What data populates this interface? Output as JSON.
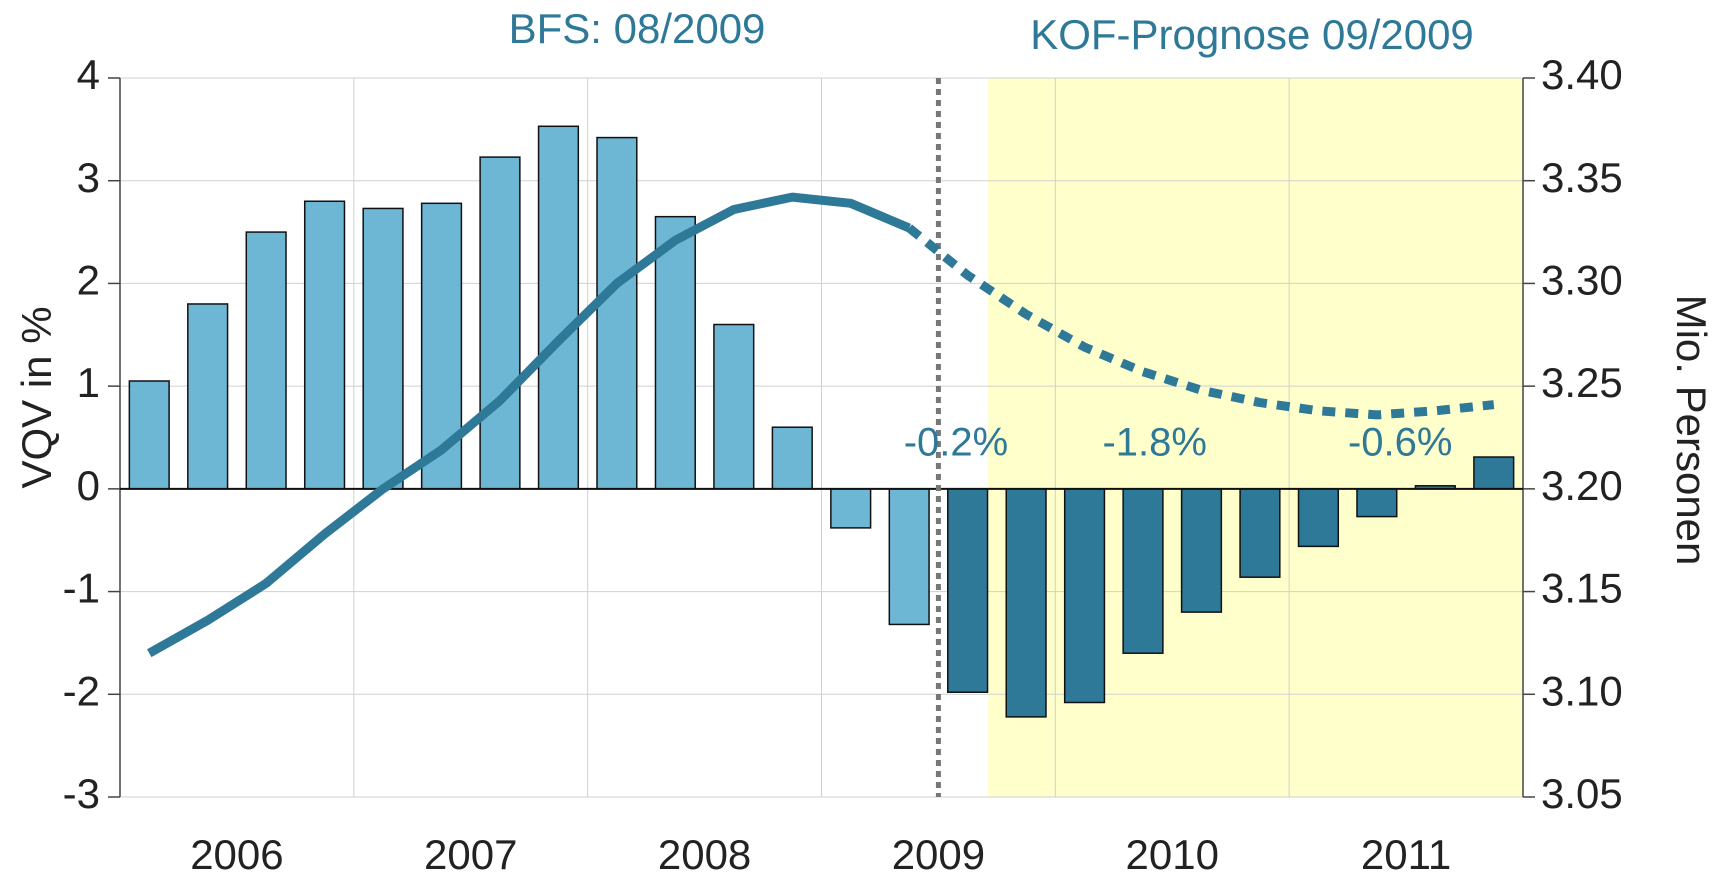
{
  "chart_data": {
    "type": "bar",
    "header_left": "BFS: 08/2009",
    "header_right": "KOF-Prognose 09/2009",
    "y_label": "VQV in %",
    "y2_label": "Mio. Personen",
    "x_labels": [
      "2006",
      "2007",
      "2008",
      "2009",
      "2010",
      "2011"
    ],
    "values": [
      1.05,
      1.8,
      2.5,
      2.8,
      2.73,
      2.78,
      3.23,
      3.53,
      3.42,
      2.65,
      1.6,
      0.6,
      -0.38,
      -1.32,
      -1.98,
      -2.22,
      -2.08,
      -1.6,
      -1.2,
      -0.86,
      -0.56,
      -0.27,
      0.03,
      0.31
    ],
    "colors": [
      "#6db6d4",
      "#6db6d4",
      "#6db6d4",
      "#6db6d4",
      "#6db6d4",
      "#6db6d4",
      "#6db6d4",
      "#6db6d4",
      "#6db6d4",
      "#6db6d4",
      "#6db6d4",
      "#6db6d4",
      "#6db6d4",
      "#6db6d4",
      "#2e7898",
      "#2e7898",
      "#2e7898",
      "#2e7898",
      "#2e7898",
      "#2e7898",
      "#2e7898",
      "#2e7898",
      "#2e7898",
      "#2e7898"
    ],
    "lines": [
      {
        "color": "#2e7898",
        "dashed": false,
        "axis": "y2",
        "values": [
          3.12,
          3.136,
          3.154,
          3.178,
          3.2,
          3.219,
          3.243,
          3.272,
          3.3,
          3.321,
          3.336,
          3.342,
          3.339,
          3.327,
          null,
          null,
          null,
          null,
          null,
          null,
          null,
          null,
          null,
          null
        ]
      },
      {
        "color": "#2e7898",
        "dashed": true,
        "axis": "y2",
        "values": [
          null,
          null,
          null,
          null,
          null,
          null,
          null,
          null,
          null,
          null,
          null,
          null,
          null,
          3.327,
          3.304,
          3.285,
          3.269,
          3.257,
          3.248,
          3.242,
          3.238,
          3.236,
          3.238,
          3.241
        ]
      }
    ],
    "annotations": [
      "-0.2%",
      "-1.8%",
      "-0.6%"
    ],
    "annotation_color": "#2e7898",
    "forecast_color": "#ffffcc",
    "ylim": [
      -3,
      4
    ],
    "yticks": [
      -3,
      -2,
      -1,
      0,
      1,
      2,
      3,
      4
    ],
    "y2lim": [
      3.05,
      3.4
    ],
    "y2ticks": [
      3.05,
      {
        "value": 3.1,
        "label": "3.10"
      },
      3.15,
      {
        "value": 3.2,
        "label": "3.20"
      },
      3.25,
      {
        "value": 3.3,
        "label": "3.30"
      },
      3.35,
      {
        "value": 3.4,
        "label": "3.40"
      }
    ],
    "grid": true
  }
}
